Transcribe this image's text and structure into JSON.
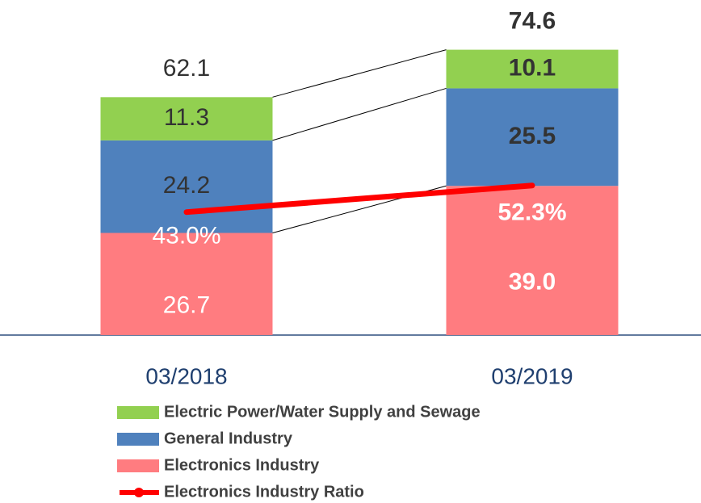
{
  "chart_data": {
    "type": "stacked_bar_line",
    "categories": [
      "03/2018",
      "03/2019"
    ],
    "series": [
      {
        "name": "Electric Power/Water Supply and Sewage",
        "color": "#92d050",
        "values": [
          11.3,
          10.1
        ]
      },
      {
        "name": "General Industry",
        "color": "#4f81bd",
        "values": [
          24.2,
          25.5
        ]
      },
      {
        "name": "Electronics Industry",
        "color": "#ff7c80",
        "values": [
          26.7,
          39.0
        ],
        "value_labels": [
          "26.7",
          "39.0"
        ]
      },
      {
        "name": "Electronics Industry Ratio",
        "color": "#ff0000",
        "type": "line",
        "axis": "y2",
        "values": [
          43.0,
          52.3
        ],
        "value_labels": [
          "43.0%",
          "52.3%"
        ]
      }
    ],
    "totals": [
      62.1,
      74.6
    ],
    "ylim": [
      0,
      80
    ],
    "y2lim": [
      0,
      107
    ]
  }
}
